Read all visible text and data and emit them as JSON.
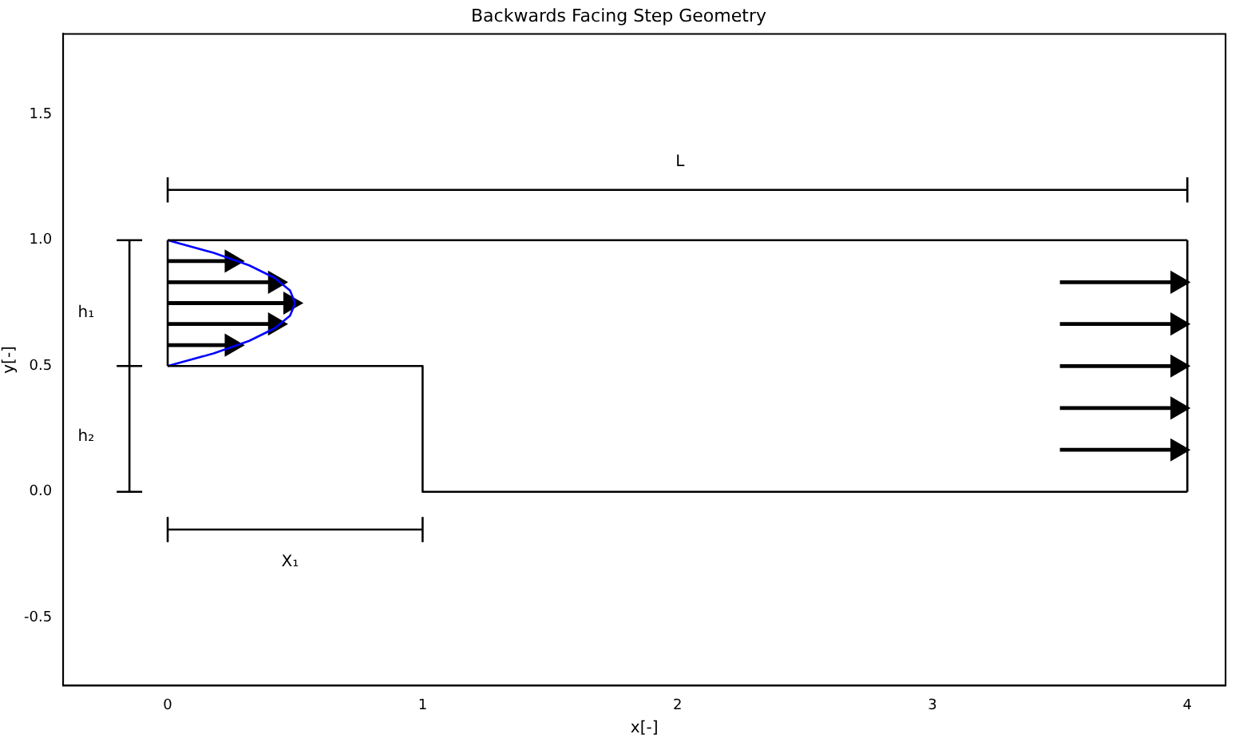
{
  "chart_data": {
    "type": "line",
    "title": "Backwards Facing Step Geometry",
    "xlabel": "x[-]",
    "ylabel": "y[-]",
    "xlim": [
      -0.41,
      4.15
    ],
    "ylim": [
      -0.77,
      1.82
    ],
    "xticks": [
      0,
      1,
      2,
      3,
      4
    ],
    "yticks": [
      -0.5,
      {
        "value": 0,
        "label": "0.0"
      },
      0.5,
      {
        "value": 1,
        "label": "1.0"
      },
      1.5
    ],
    "grid": false,
    "legend": false,
    "marker": "none",
    "line_style": "solid",
    "series": [
      {
        "type": "step",
        "color": "#000000",
        "x": [
          0,
          1,
          4
        ],
        "values": [
          0.5,
          0,
          0
        ]
      },
      {
        "color": "#000000",
        "x": [
          0,
          4
        ],
        "values": [
          1,
          1
        ]
      },
      {
        "color": "#000000",
        "x": [
          0,
          4
        ],
        "values": [
          1.2,
          1.2
        ]
      },
      {
        "color": "#000000",
        "x": [
          0,
          1
        ],
        "values": [
          -0.15,
          -0.15
        ]
      },
      {
        "color": "#0000ff",
        "x": [
          0,
          0.18,
          0.32,
          0.42,
          0.48,
          0.5
        ],
        "values": [
          0.5,
          0.55,
          0.6,
          0.65,
          0.7,
          0.75
        ]
      },
      {
        "color": "#0000ff",
        "x": [
          0.5,
          0.48,
          0.42,
          0.32,
          0.18,
          0
        ],
        "values": [
          0.75,
          0.8,
          0.85,
          0.9,
          0.95,
          1.0
        ]
      },
      {
        "color": "#000000",
        "marker": "triangle",
        "x": [
          0,
          0.25
        ],
        "values": [
          0.583,
          0.583
        ]
      },
      {
        "color": "#000000",
        "marker": "triangle",
        "x": [
          0,
          0.42
        ],
        "values": [
          0.667,
          0.667
        ]
      },
      {
        "color": "#000000",
        "marker": "triangle",
        "x": [
          0,
          0.48
        ],
        "values": [
          0.75,
          0.75
        ]
      },
      {
        "color": "#000000",
        "marker": "triangle",
        "x": [
          0,
          0.42
        ],
        "values": [
          0.833,
          0.833
        ]
      },
      {
        "color": "#000000",
        "marker": "triangle",
        "x": [
          0,
          0.25
        ],
        "values": [
          0.917,
          0.917
        ]
      },
      {
        "color": "#000000",
        "marker": "triangle",
        "x": [
          3.5,
          3.96
        ],
        "values": [
          0.167,
          0.167
        ]
      },
      {
        "color": "#000000",
        "marker": "triangle",
        "x": [
          3.5,
          3.96
        ],
        "values": [
          0.333,
          0.333
        ]
      },
      {
        "color": "#000000",
        "marker": "triangle",
        "x": [
          3.5,
          3.96
        ],
        "values": [
          0.5,
          0.5
        ]
      },
      {
        "color": "#000000",
        "marker": "triangle",
        "x": [
          3.5,
          3.96
        ],
        "values": [
          0.667,
          0.667
        ]
      },
      {
        "color": "#000000",
        "marker": "triangle",
        "x": [
          3.5,
          3.96
        ],
        "values": [
          0.833,
          0.833
        ]
      }
    ],
    "annotations": [
      "L",
      "h₁",
      "h₂",
      "X₁"
    ]
  }
}
